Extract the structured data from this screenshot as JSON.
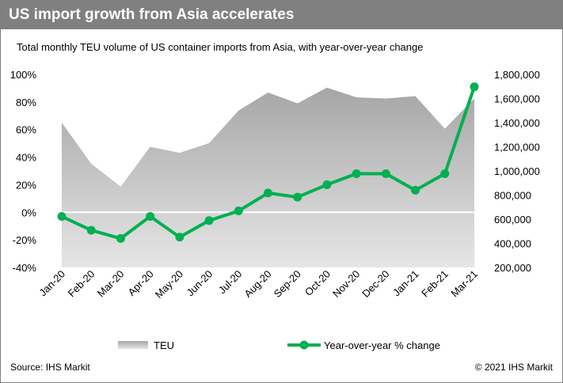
{
  "header": {
    "title": "US import growth from Asia accelerates"
  },
  "subtitle": "Total monthly TEU volume of US container imports from Asia, with year-over-year change",
  "footer": {
    "source": "Source: IHS Markit",
    "copyright": "© 2021 IHS Markit"
  },
  "colors": {
    "line": "#00b050",
    "area_top": "#a6a6a6",
    "area_bottom": "#e6e6e6",
    "title_bar": "#808080"
  },
  "chart_data": {
    "type": "area+line",
    "categories": [
      "Jan-20",
      "Feb-20",
      "Mar-20",
      "Apr-20",
      "May-20",
      "Jun-20",
      "Jul-20",
      "Aug-20",
      "Sep-20",
      "Oct-20",
      "Nov-20",
      "Dec-20",
      "Jan-21",
      "Feb-21",
      "Mar-21"
    ],
    "series": [
      {
        "name": "TEU",
        "type": "area",
        "axis": "right",
        "values": [
          1400000,
          1060000,
          870000,
          1200000,
          1150000,
          1230000,
          1500000,
          1650000,
          1560000,
          1690000,
          1610000,
          1600000,
          1620000,
          1350000,
          1600000
        ]
      },
      {
        "name": "Year-over-year % change",
        "type": "line",
        "axis": "left",
        "values": [
          -3,
          -13,
          -19,
          -3,
          -18,
          -6,
          1,
          14,
          11,
          20,
          28,
          28,
          16,
          28,
          91
        ]
      }
    ],
    "left_axis": {
      "ylim": [
        -40,
        100
      ],
      "ticks": [
        -40,
        -20,
        0,
        20,
        40,
        60,
        80,
        100
      ],
      "tick_labels": [
        "-40%",
        "-20%",
        "0%",
        "20%",
        "40%",
        "60%",
        "80%",
        "100%"
      ]
    },
    "right_axis": {
      "ylim": [
        200000,
        1800000
      ],
      "ticks": [
        200000,
        400000,
        600000,
        800000,
        1000000,
        1200000,
        1400000,
        1600000,
        1800000
      ],
      "tick_labels": [
        "200,000",
        "400,000",
        "600,000",
        "800,000",
        "1,000,000",
        "1,200,000",
        "1,400,000",
        "1,600,000",
        "1,800,000"
      ]
    },
    "legend": {
      "position": "bottom",
      "entries": [
        "TEU",
        "Year-over-year % change"
      ]
    },
    "grid": false
  }
}
